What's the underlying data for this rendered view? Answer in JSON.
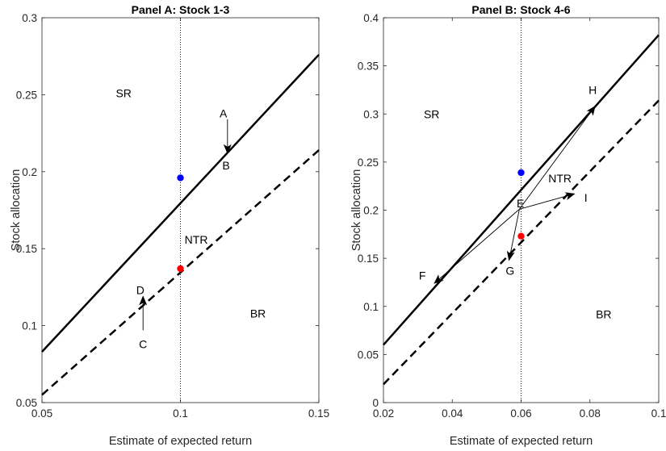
{
  "chart_data": [
    {
      "type": "line",
      "title": "Panel A: Stock 1-3",
      "xlabel": "Estimate of expected return",
      "ylabel": "Stock allocation",
      "xlim": [
        0.05,
        0.15
      ],
      "ylim": [
        0.05,
        0.3
      ],
      "xticks": [
        "0.05",
        "0.1",
        "0.15"
      ],
      "yticks": [
        "0.05",
        "0.1",
        "0.15",
        "0.2",
        "0.25",
        "0.3"
      ],
      "grid": false,
      "vline": 0.1,
      "series": [
        {
          "style": "solid",
          "color": "#000000",
          "x": [
            0.05,
            0.15
          ],
          "y": [
            0.083,
            0.276
          ]
        },
        {
          "style": "dashed",
          "color": "#000000",
          "x": [
            0.05,
            0.15
          ],
          "y": [
            0.055,
            0.214
          ]
        }
      ],
      "points": [
        {
          "x": 0.1,
          "y": 0.196,
          "color": "#0000ff"
        },
        {
          "x": 0.1,
          "y": 0.137,
          "color": "#ff0000"
        }
      ],
      "arrows": [
        {
          "from": [
            0.117,
            0.234
          ],
          "to": [
            0.117,
            0.212
          ]
        },
        {
          "from": [
            0.0865,
            0.097
          ],
          "to": [
            0.0865,
            0.119
          ]
        }
      ],
      "annotations": [
        {
          "text": "SR",
          "x": 0.0795,
          "y": 0.251
        },
        {
          "text": "NTR",
          "x": 0.1057,
          "y": 0.156
        },
        {
          "text": "BR",
          "x": 0.128,
          "y": 0.108
        },
        {
          "text": "A",
          "x": 0.1155,
          "y": 0.238
        },
        {
          "text": "B",
          "x": 0.1165,
          "y": 0.204
        },
        {
          "text": "C",
          "x": 0.0865,
          "y": 0.088
        },
        {
          "text": "D",
          "x": 0.0855,
          "y": 0.123
        }
      ]
    },
    {
      "type": "line",
      "title": "Panel B: Stock 4-6",
      "xlabel": "Estimate of expected return",
      "ylabel": "Stock allocation",
      "xlim": [
        0.02,
        0.1
      ],
      "ylim": [
        0,
        0.4
      ],
      "xticks": [
        "0.02",
        "0.04",
        "0.06",
        "0.08",
        "0.1"
      ],
      "yticks": [
        "0",
        "0.05",
        "0.1",
        "0.15",
        "0.2",
        "0.25",
        "0.3",
        "0.35",
        "0.4"
      ],
      "grid": false,
      "vline": 0.06,
      "series": [
        {
          "style": "solid",
          "color": "#000000",
          "x": [
            0.02,
            0.1
          ],
          "y": [
            0.06,
            0.382
          ]
        },
        {
          "style": "dashed",
          "color": "#000000",
          "x": [
            0.02,
            0.1
          ],
          "y": [
            0.019,
            0.314
          ]
        }
      ],
      "points": [
        {
          "x": 0.06,
          "y": 0.239,
          "color": "#0000ff"
        },
        {
          "x": 0.06,
          "y": 0.173,
          "color": "#ff0000"
        }
      ],
      "arrows": [
        {
          "from": [
            0.0595,
            0.201
          ],
          "to": [
            0.0815,
            0.308
          ]
        },
        {
          "from": [
            0.0595,
            0.201
          ],
          "to": [
            0.0755,
            0.217
          ]
        },
        {
          "from": [
            0.0595,
            0.201
          ],
          "to": [
            0.0565,
            0.148
          ]
        },
        {
          "from": [
            0.0595,
            0.201
          ],
          "to": [
            0.0348,
            0.124
          ]
        }
      ],
      "annotations": [
        {
          "text": "SR",
          "x": 0.034,
          "y": 0.3
        },
        {
          "text": "NTR",
          "x": 0.0713,
          "y": 0.233
        },
        {
          "text": "BR",
          "x": 0.084,
          "y": 0.092
        },
        {
          "text": "E",
          "x": 0.0598,
          "y": 0.207
        },
        {
          "text": "H",
          "x": 0.0808,
          "y": 0.325
        },
        {
          "text": "I",
          "x": 0.0788,
          "y": 0.213
        },
        {
          "text": "G",
          "x": 0.0568,
          "y": 0.137
        },
        {
          "text": "F",
          "x": 0.0313,
          "y": 0.132
        }
      ]
    }
  ]
}
